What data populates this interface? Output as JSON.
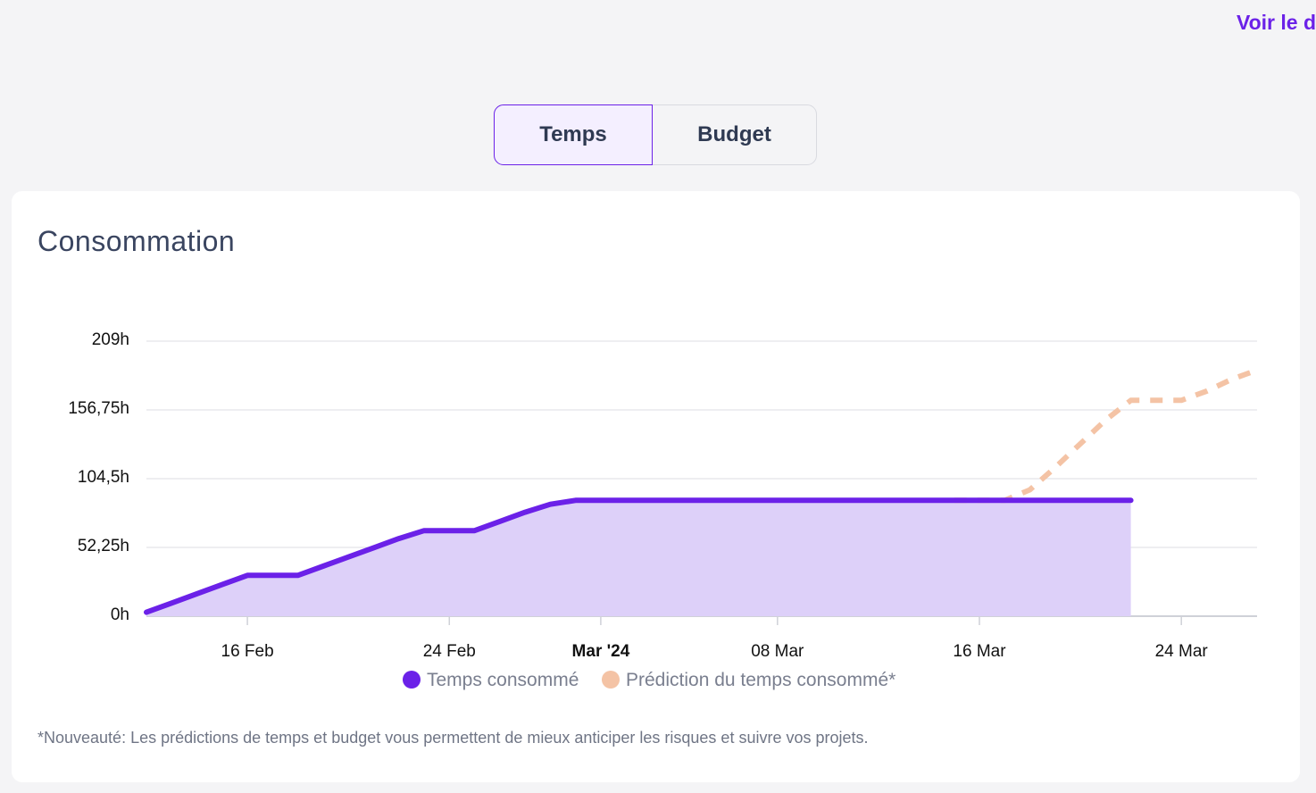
{
  "top_link": {
    "label": "Voir le d"
  },
  "tabs": [
    {
      "label": "Temps",
      "active": true
    },
    {
      "label": "Budget",
      "active": false
    }
  ],
  "card": {
    "title": "Consommation",
    "footnote": "*Nouveauté: Les prédictions de temps et budget vous permettent de mieux anticiper les risques et suivre vos projets."
  },
  "chart_data": {
    "type": "area",
    "title": "",
    "xlabel": "",
    "ylabel": "",
    "ylim": [
      0,
      209
    ],
    "grid": true,
    "legend_position": "bottom",
    "y_ticks": [
      "0h",
      "52,25h",
      "104,5h",
      "156,75h",
      "209h"
    ],
    "y_tick_values": [
      0,
      52.25,
      104.5,
      156.75,
      209
    ],
    "x_ticks": [
      {
        "date": "2024-02-16",
        "label": "16 Feb",
        "bold": false
      },
      {
        "date": "2024-02-24",
        "label": "24 Feb",
        "bold": false
      },
      {
        "date": "2024-03-01",
        "label": "Mar '24",
        "bold": true
      },
      {
        "date": "2024-03-08",
        "label": "08 Mar",
        "bold": false
      },
      {
        "date": "2024-03-16",
        "label": "16 Mar",
        "bold": false
      },
      {
        "date": "2024-03-24",
        "label": "24 Mar",
        "bold": false
      }
    ],
    "xlim": [
      "2024-02-12",
      "2024-03-27"
    ],
    "series": [
      {
        "name": "Temps consommé",
        "color": "#6b21e8",
        "fill": "#ddd0f9",
        "style": "solid",
        "points": [
          [
            "2024-02-12",
            3
          ],
          [
            "2024-02-13",
            10
          ],
          [
            "2024-02-14",
            17
          ],
          [
            "2024-02-15",
            24
          ],
          [
            "2024-02-16",
            31
          ],
          [
            "2024-02-17",
            31
          ],
          [
            "2024-02-18",
            31
          ],
          [
            "2024-02-19",
            38
          ],
          [
            "2024-02-20",
            45
          ],
          [
            "2024-02-21",
            52
          ],
          [
            "2024-02-22",
            59
          ],
          [
            "2024-02-23",
            65
          ],
          [
            "2024-02-24",
            65
          ],
          [
            "2024-02-25",
            65
          ],
          [
            "2024-02-26",
            72
          ],
          [
            "2024-02-27",
            79
          ],
          [
            "2024-02-28",
            85
          ],
          [
            "2024-02-29",
            88
          ],
          [
            "2024-03-01",
            88
          ],
          [
            "2024-03-05",
            88
          ],
          [
            "2024-03-10",
            88
          ],
          [
            "2024-03-15",
            88
          ],
          [
            "2024-03-20",
            88
          ],
          [
            "2024-03-22",
            88
          ]
        ]
      },
      {
        "name": "Prédiction du temps consommé*",
        "color": "#f4c3a5",
        "style": "dashed",
        "points": [
          [
            "2024-03-15",
            88
          ],
          [
            "2024-03-17",
            88
          ],
          [
            "2024-03-18",
            96
          ],
          [
            "2024-03-19",
            113
          ],
          [
            "2024-03-20",
            131
          ],
          [
            "2024-03-21",
            149
          ],
          [
            "2024-03-22",
            164
          ],
          [
            "2024-03-23",
            164
          ],
          [
            "2024-03-24",
            164
          ],
          [
            "2024-03-25",
            171
          ],
          [
            "2024-03-26",
            180
          ],
          [
            "2024-03-27",
            187
          ]
        ]
      }
    ]
  }
}
